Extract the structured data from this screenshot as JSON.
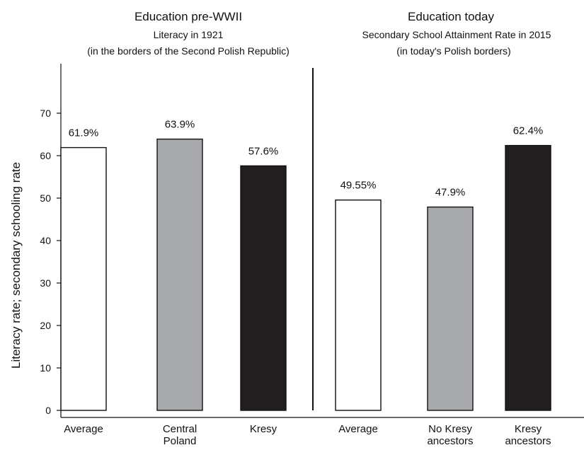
{
  "chart_data": {
    "type": "bar",
    "ylabel": "Literacy rate; secondary schooling rate",
    "ylim": [
      0,
      70
    ],
    "yticks": [
      0,
      10,
      20,
      30,
      40,
      50,
      60,
      70
    ],
    "grid": false,
    "colors": {
      "white": "#ffffff",
      "gray": "#a7a9ac",
      "black": "#231f20",
      "stroke": "#111111"
    },
    "panels": [
      {
        "title": "Education pre-WWII",
        "subtitle": [
          "Literacy in 1921",
          "(in the borders of the Second Polish Republic)"
        ],
        "bars": [
          {
            "category": [
              "Average"
            ],
            "value": 61.9,
            "label": "61.9%",
            "fill": "white"
          },
          {
            "category": [
              "Central",
              "Poland"
            ],
            "value": 63.9,
            "label": "63.9%",
            "fill": "gray"
          },
          {
            "category": [
              "Kresy"
            ],
            "value": 57.6,
            "label": "57.6%",
            "fill": "black"
          }
        ]
      },
      {
        "title": "Education today",
        "subtitle": [
          "Secondary School Attainment Rate in 2015",
          "(in today's Polish borders)"
        ],
        "bars": [
          {
            "category": [
              "Average"
            ],
            "value": 49.55,
            "label": "49.55%",
            "fill": "white"
          },
          {
            "category": [
              "No Kresy",
              "ancestors"
            ],
            "value": 47.9,
            "label": "47.9%",
            "fill": "gray"
          },
          {
            "category": [
              "Kresy",
              "ancestors"
            ],
            "value": 62.4,
            "label": "62.4%",
            "fill": "black"
          }
        ]
      }
    ]
  }
}
